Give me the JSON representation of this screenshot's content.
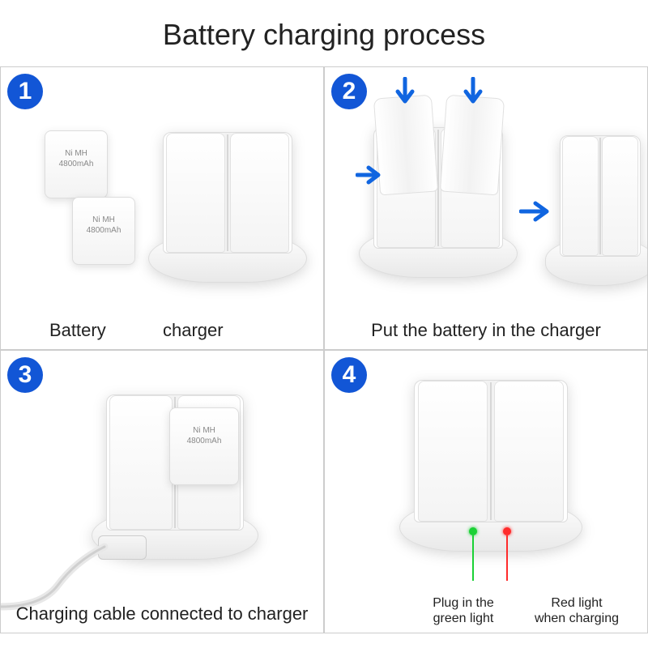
{
  "title": "Battery charging process",
  "colors": {
    "accent": "#1256d6",
    "arrow": "#1065e0",
    "green": "#1bd135",
    "red": "#ff2b2b",
    "border": "#cccccc",
    "text": "#222222"
  },
  "battery_label_line1": "Ni MH",
  "battery_label_line2": "4800mAh",
  "steps": [
    {
      "num": "1",
      "caption_a": "Battery",
      "caption_b": "charger"
    },
    {
      "num": "2",
      "caption": "Put the battery in the charger"
    },
    {
      "num": "3",
      "caption": "Charging cable connected to charger"
    },
    {
      "num": "4",
      "caption_green": "Plug in the\ngreen light",
      "caption_red": "Red light\nwhen charging"
    }
  ]
}
